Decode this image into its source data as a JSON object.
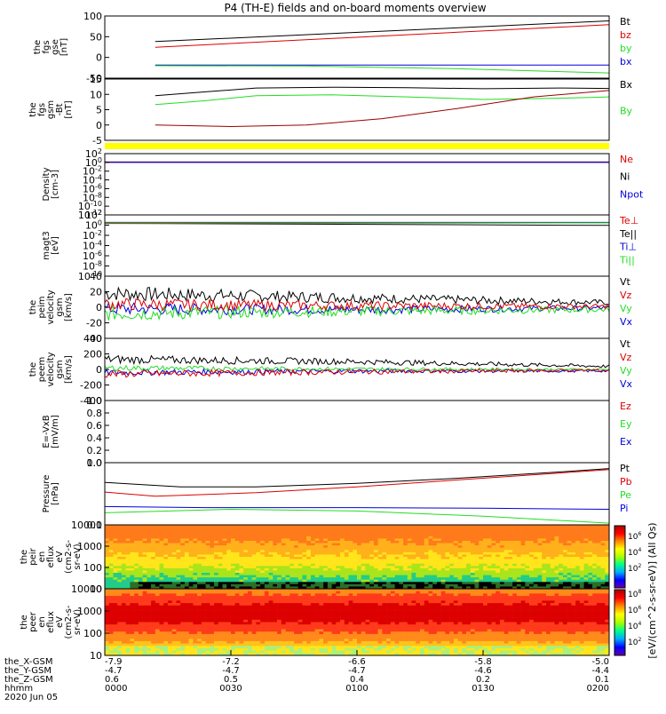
{
  "title": "P4 (TH-E) fields and on-board moments overview",
  "footer_labels": [
    "the_X-GSM",
    "the_Y-GSM",
    "the_Z-GSM",
    "hhmm",
    "2020 Jun 05"
  ],
  "footer_rows": {
    "x_gsm": [
      "-7.9",
      "-7.2",
      "-6.6",
      "-5.8",
      "-5.0"
    ],
    "y_gsm": [
      "-4.7",
      "-4.7",
      "-4.7",
      "-4.6",
      "-4.4"
    ],
    "z_gsm": [
      "0.6",
      "0.5",
      "0.4",
      "0.2",
      "0.1"
    ],
    "hhmm": [
      "0000",
      "0030",
      "0100",
      "0130",
      "0200"
    ]
  },
  "colorbar_label": "[eV/(cm^2-s-sr-eV)] (All Qs)",
  "colorbar_ticks_top": [
    "10^6",
    "10^4",
    "10^2"
  ],
  "colorbar_ticks_bottom": [
    "10^8",
    "10^6",
    "10^4",
    "10^2"
  ],
  "colors": {
    "black": "#000000",
    "red": "#dd0000",
    "green": "#22dd22",
    "blue": "#0000dd",
    "yellow": "#ffff00"
  },
  "chart_data": [
    {
      "type": "line",
      "ylabel": [
        "the",
        "fgs",
        "gse",
        "[nT]"
      ],
      "yticks": [
        "100",
        "50",
        "0",
        "-50"
      ],
      "ylim": [
        -60,
        105
      ],
      "legend": [
        {
          "name": "Bt",
          "color": "#000000"
        },
        {
          "name": "bz",
          "color": "#dd0000"
        },
        {
          "name": "by",
          "color": "#22dd22"
        },
        {
          "name": "bx",
          "color": "#0000dd"
        }
      ],
      "series": [
        {
          "name": "Bt",
          "color": "#000000",
          "x": [
            0.2,
            2.0
          ],
          "y": [
            37,
            92
          ]
        },
        {
          "name": "bz",
          "color": "#dd0000",
          "x": [
            0.2,
            2.0
          ],
          "y": [
            22,
            82
          ]
        },
        {
          "name": "bx",
          "color": "#0000dd",
          "x": [
            0.2,
            2.0
          ],
          "y": [
            -25,
            -25
          ]
        },
        {
          "name": "by",
          "color": "#22dd22",
          "x": [
            0.2,
            0.8,
            1.4,
            2.0
          ],
          "y": [
            -27,
            -28,
            -35,
            -46
          ]
        }
      ]
    },
    {
      "type": "line",
      "ylabel": [
        "the",
        "fgs",
        "gsm",
        "-Bt",
        "[nT]"
      ],
      "yticks": [
        "15",
        "10",
        "5",
        "0",
        "-5"
      ],
      "ylim": [
        -8,
        16
      ],
      "legend": [
        {
          "name": "Bx",
          "color": "#000000"
        },
        {
          "name": "By",
          "color": "#22dd22"
        }
      ],
      "series": [
        {
          "name": "Bx",
          "color": "#000000",
          "x": [
            0.2,
            0.4,
            0.6,
            0.9,
            1.2,
            1.5,
            1.8,
            2.0
          ],
          "y": [
            9.5,
            11,
            12.5,
            12.8,
            12.6,
            12.2,
            12.5,
            12.3
          ]
        },
        {
          "name": "By",
          "color": "#22dd22",
          "x": [
            0.2,
            0.4,
            0.6,
            0.9,
            1.2,
            1.5,
            1.8,
            2.0
          ],
          "y": [
            6,
            7.5,
            9.5,
            9.8,
            9,
            8,
            8.5,
            9
          ]
        },
        {
          "name": "Bz",
          "color": "#990000",
          "x": [
            0.2,
            0.5,
            0.8,
            1.1,
            1.4,
            1.7,
            2.0
          ],
          "y": [
            -2,
            -2.6,
            -2,
            0.5,
            4.5,
            9,
            11.5
          ]
        }
      ]
    },
    {
      "type": "line",
      "ylabel": [
        "Density",
        "[cm-3]"
      ],
      "yticks": [
        "10^2",
        "10^0",
        "10^-2",
        "10^-4",
        "10^-6",
        "10^-8",
        "10^-10",
        "10^-12"
      ],
      "ylim": [
        -12,
        2
      ],
      "legend": [
        {
          "name": "Ne",
          "color": "#dd0000"
        },
        {
          "name": "Ni",
          "color": "#000000"
        },
        {
          "name": "Npot",
          "color": "#0000dd"
        }
      ],
      "series": [
        {
          "name": "Ni",
          "color": "#000000",
          "x": [
            0,
            2.0
          ],
          "y": [
            0.1,
            0.1
          ]
        },
        {
          "name": "Ne",
          "color": "#dd0000",
          "x": [
            0,
            2.0
          ],
          "y": [
            0.05,
            0.05
          ]
        },
        {
          "name": "Npot",
          "color": "#0000dd",
          "x": [
            0,
            2.0
          ],
          "y": [
            0,
            0
          ]
        }
      ]
    },
    {
      "type": "line",
      "ylabel": [
        "magt3",
        "[eV]"
      ],
      "yticks": [
        "10^2",
        "10^0",
        "10^-2",
        "10^-4",
        "10^-6",
        "10^-8",
        "10^-10"
      ],
      "ylim": [
        -12,
        2
      ],
      "legend": [
        {
          "name": "Te⊥",
          "color": "#dd0000"
        },
        {
          "name": "Te||",
          "color": "#000000"
        },
        {
          "name": "Ti⊥",
          "color": "#0000dd"
        },
        {
          "name": "Ti||",
          "color": "#22dd22"
        }
      ],
      "series": [
        {
          "name": "Te||",
          "color": "#000000",
          "x": [
            0,
            2.0
          ],
          "y": [
            0.1,
            -0.4
          ]
        },
        {
          "name": "Te⊥",
          "color": "#dd0000",
          "x": [
            0,
            2.0
          ],
          "y": [
            0.05,
            0.2
          ]
        },
        {
          "name": "Ti⊥",
          "color": "#0000dd",
          "x": [
            0,
            2.0
          ],
          "y": [
            0.3,
            0.3
          ]
        },
        {
          "name": "Ti||",
          "color": "#22dd22",
          "x": [
            0,
            2.0
          ],
          "y": [
            0.2,
            0.2
          ]
        }
      ]
    },
    {
      "type": "line",
      "ylabel": [
        "the",
        "peim",
        "velocity",
        "gsm",
        "[km/s]"
      ],
      "yticks": [
        "40",
        "20",
        "0",
        "-20",
        "-40"
      ],
      "ylim": [
        -40,
        40
      ],
      "legend": [
        {
          "name": "Vt",
          "color": "#000000"
        },
        {
          "name": "Vz",
          "color": "#dd0000"
        },
        {
          "name": "Vy",
          "color": "#22dd22"
        },
        {
          "name": "Vx",
          "color": "#0000dd"
        }
      ],
      "series": [
        {
          "name": "Vt",
          "color": "#000000",
          "noise": 7,
          "x": [
            0,
            1,
            2
          ],
          "y": [
            18,
            12,
            6
          ]
        },
        {
          "name": "Vx",
          "color": "#0000dd",
          "noise": 6,
          "x": [
            0,
            1,
            2
          ],
          "y": [
            -2,
            -3,
            -1
          ]
        },
        {
          "name": "Vy",
          "color": "#22dd22",
          "noise": 7,
          "x": [
            0,
            1,
            2
          ],
          "y": [
            -8,
            -5,
            -3
          ]
        },
        {
          "name": "Vz",
          "color": "#dd0000",
          "noise": 6,
          "x": [
            0,
            1,
            2
          ],
          "y": [
            4,
            2,
            1
          ]
        }
      ]
    },
    {
      "type": "line",
      "ylabel": [
        "the",
        "peem",
        "velocity",
        "gsm",
        "[km/s]"
      ],
      "yticks": [
        "400",
        "200",
        "0",
        "-200",
        "-400"
      ],
      "ylim": [
        -400,
        400
      ],
      "legend": [
        {
          "name": "Vt",
          "color": "#000000"
        },
        {
          "name": "Vz",
          "color": "#dd0000"
        },
        {
          "name": "Vy",
          "color": "#22dd22"
        },
        {
          "name": "Vx",
          "color": "#0000dd"
        }
      ],
      "series": [
        {
          "name": "Vt",
          "color": "#000000",
          "noise": 40,
          "x": [
            0,
            1,
            2
          ],
          "y": [
            130,
            100,
            40
          ]
        },
        {
          "name": "Vx",
          "color": "#0000dd",
          "noise": 30,
          "x": [
            0,
            1,
            2
          ],
          "y": [
            -40,
            -20,
            -20
          ]
        },
        {
          "name": "Vy",
          "color": "#22dd22",
          "noise": 25,
          "x": [
            0,
            1,
            2
          ],
          "y": [
            20,
            5,
            0
          ]
        },
        {
          "name": "Vz",
          "color": "#dd0000",
          "noise": 35,
          "x": [
            0,
            1,
            2
          ],
          "y": [
            -60,
            -30,
            -10
          ]
        }
      ]
    },
    {
      "type": "line",
      "ylabel": [
        "E=-VxB",
        "[mV/m]"
      ],
      "yticks": [
        "1.0",
        "0.8",
        "0.6",
        "0.4",
        "0.2",
        "0.0"
      ],
      "ylim": [
        0,
        1
      ],
      "legend": [
        {
          "name": "Ez",
          "color": "#dd0000"
        },
        {
          "name": "Ey",
          "color": "#22dd22"
        },
        {
          "name": "Ex",
          "color": "#0000dd"
        }
      ],
      "series": []
    },
    {
      "type": "line",
      "ylabel": [
        "Pressure",
        "[nPa]"
      ],
      "yticks": [
        "1.0",
        "0.1"
      ],
      "ylim": [
        -1.05,
        0.75
      ],
      "log": true,
      "legend": [
        {
          "name": "Pt",
          "color": "#000000"
        },
        {
          "name": "Pb",
          "color": "#dd0000"
        },
        {
          "name": "Pe",
          "color": "#22dd22"
        },
        {
          "name": "Pi",
          "color": "#0000dd"
        }
      ],
      "series": [
        {
          "name": "Pt",
          "color": "#000000",
          "x": [
            0,
            0.3,
            0.6,
            1.0,
            1.4,
            1.8,
            2.0
          ],
          "y": [
            0.18,
            0.05,
            0.05,
            0.15,
            0.3,
            0.48,
            0.58
          ]
        },
        {
          "name": "Pb",
          "color": "#dd0000",
          "x": [
            0,
            0.2,
            0.6,
            1.0,
            1.4,
            1.8,
            2.0
          ],
          "y": [
            -0.1,
            -0.22,
            -0.12,
            0.05,
            0.25,
            0.45,
            0.55
          ]
        },
        {
          "name": "Pi",
          "color": "#0000dd",
          "x": [
            0,
            0.4,
            1.0,
            1.5,
            2.0
          ],
          "y": [
            -0.52,
            -0.55,
            -0.55,
            -0.57,
            -0.6
          ]
        },
        {
          "name": "Pe",
          "color": "#22dd22",
          "x": [
            0,
            0.5,
            1.0,
            1.5,
            2.0
          ],
          "y": [
            -0.7,
            -0.6,
            -0.65,
            -0.8,
            -1.0
          ]
        }
      ]
    },
    {
      "type": "heatmap",
      "ylabel": [
        "the",
        "peir",
        "en",
        "eflux",
        "eV",
        "(cm2-s-",
        "sr-eV)"
      ],
      "yticks": [
        "10000",
        "1000",
        "100",
        "10"
      ],
      "ylim": [
        0.7,
        4.4
      ],
      "log": true
    },
    {
      "type": "heatmap",
      "ylabel": [
        "the",
        "peer",
        "en",
        "eflux",
        "eV",
        "(cm2-s-",
        "sr-eV)"
      ],
      "yticks": [
        "10000",
        "1000",
        "100",
        "10"
      ],
      "ylim": [
        0.7,
        4.4
      ],
      "log": true
    }
  ]
}
